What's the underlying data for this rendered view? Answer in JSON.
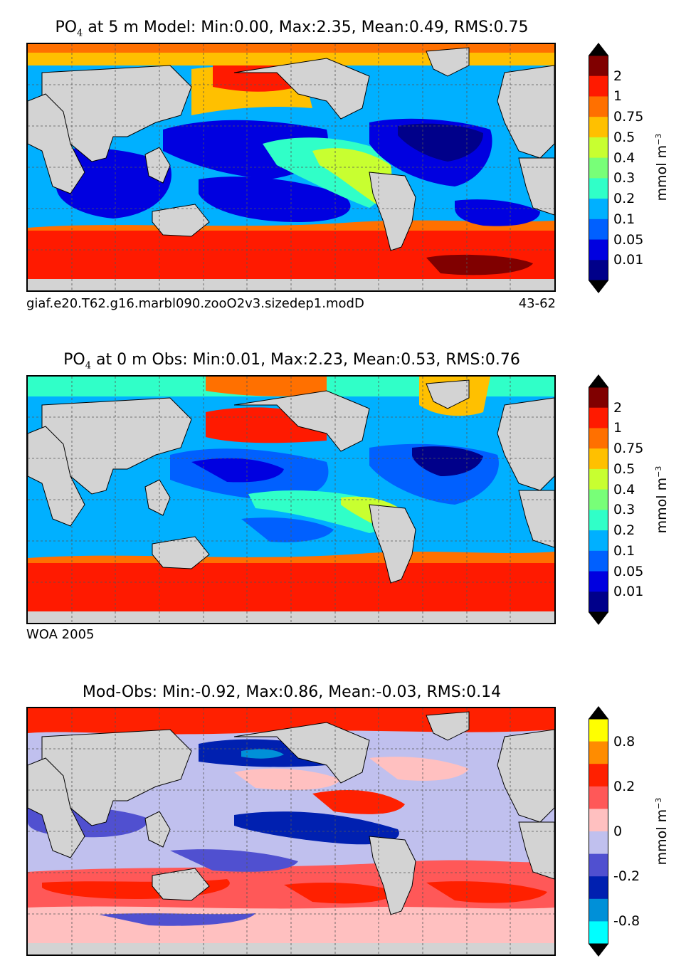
{
  "panels": [
    {
      "title_prefix": "PO",
      "title_sub": "4",
      "title_rest": "  at 5 m Model: Min:0.00, Max:2.35, Mean:0.49, RMS:0.75",
      "caption_left": "giaf.e20.T62.g16.marbl090.zooO2v3.sizedep1.modD",
      "caption_right": "43-62",
      "map_kind": "model",
      "colorbar": {
        "ticks": [
          "2",
          "1",
          "0.75",
          "0.5",
          "0.4",
          "0.3",
          "0.2",
          "0.1",
          "0.05",
          "0.01"
        ],
        "colors": [
          "#800000",
          "#ff1a00",
          "#ff7000",
          "#ffc000",
          "#c8ff30",
          "#78ff78",
          "#30ffc8",
          "#00b0ff",
          "#0060ff",
          "#0000e0",
          "#00008a"
        ],
        "unit": "mmol m",
        "unit_exp": "−3"
      }
    },
    {
      "title_prefix": "PO",
      "title_sub": "4",
      "title_rest": "  at 0 m Obs: Min:0.01, Max:2.23, Mean:0.53, RMS:0.76",
      "caption_left": "WOA 2005",
      "caption_right": "",
      "map_kind": "obs",
      "colorbar": {
        "ticks": [
          "2",
          "1",
          "0.75",
          "0.5",
          "0.4",
          "0.3",
          "0.2",
          "0.1",
          "0.05",
          "0.01"
        ],
        "colors": [
          "#800000",
          "#ff1a00",
          "#ff7000",
          "#ffc000",
          "#c8ff30",
          "#78ff78",
          "#30ffc8",
          "#00b0ff",
          "#0060ff",
          "#0000e0",
          "#00008a"
        ],
        "unit": "mmol m",
        "unit_exp": "−3"
      }
    },
    {
      "title_prefix": "",
      "title_sub": "",
      "title_rest": "Mod-Obs: Min:-0.92, Max:0.86, Mean:-0.03, RMS:0.14",
      "caption_left": "",
      "caption_right": "",
      "map_kind": "diff",
      "colorbar": {
        "ticks": [
          "0.8",
          "0.2",
          "0",
          "-0.2",
          "-0.8"
        ],
        "colors": [
          "#ffff00",
          "#ff8c00",
          "#ff2000",
          "#ff5858",
          "#ffc0c0",
          "#c0c0ee",
          "#5050d0",
          "#0020b0",
          "#0090d8",
          "#00ffff"
        ],
        "unit": "mmol m",
        "unit_exp": "−3"
      }
    }
  ]
}
